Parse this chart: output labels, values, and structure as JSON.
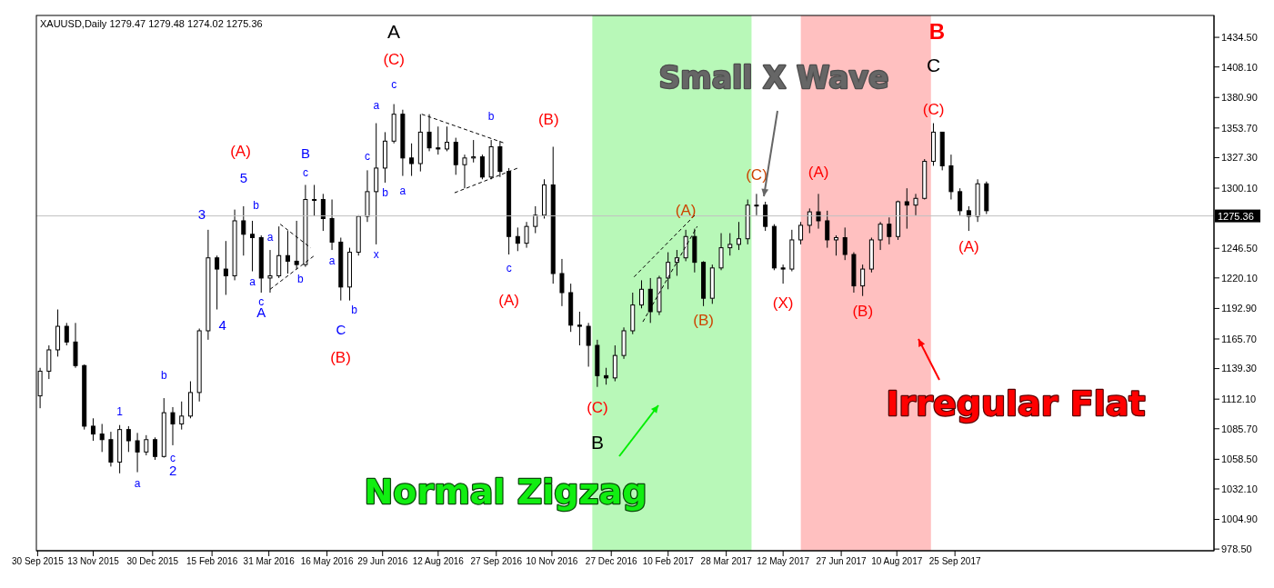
{
  "chart_data": {
    "type": "candlestick",
    "title": "XAUUSD,Daily 1279.47 1279.48 1274.02 1275.36",
    "color": "#000000",
    "x": [
      "2015-10-02",
      "2015-10-09",
      "2015-10-16",
      "2015-10-23",
      "2015-10-30",
      "2015-11-06",
      "2015-11-13",
      "2015-11-20",
      "2015-11-27",
      "2015-12-04",
      "2015-12-11",
      "2015-12-18",
      "2015-12-25",
      "2016-01-01",
      "2016-01-08",
      "2016-01-15",
      "2016-01-22",
      "2016-01-29",
      "2016-02-05",
      "2016-02-12",
      "2016-02-19",
      "2016-02-26",
      "2016-03-04",
      "2016-03-11",
      "2016-03-18",
      "2016-03-25",
      "2016-04-01",
      "2016-04-08",
      "2016-04-15",
      "2016-04-22",
      "2016-04-29",
      "2016-05-06",
      "2016-05-13",
      "2016-05-20",
      "2016-05-27",
      "2016-06-03",
      "2016-06-10",
      "2016-06-17",
      "2016-06-24",
      "2016-07-01",
      "2016-07-08",
      "2016-07-15",
      "2016-07-22",
      "2016-07-29",
      "2016-08-05",
      "2016-08-12",
      "2016-08-19",
      "2016-08-26",
      "2016-09-02",
      "2016-09-09",
      "2016-09-16",
      "2016-09-23",
      "2016-09-30",
      "2016-10-07",
      "2016-10-14",
      "2016-10-21",
      "2016-10-28",
      "2016-11-04",
      "2016-11-11",
      "2016-11-18",
      "2016-11-25",
      "2016-12-02",
      "2016-12-09",
      "2016-12-16",
      "2016-12-23",
      "2016-12-30",
      "2017-01-06",
      "2017-01-13",
      "2017-01-20",
      "2017-01-27",
      "2017-02-03",
      "2017-02-10",
      "2017-02-17",
      "2017-02-24",
      "2017-03-03",
      "2017-03-10",
      "2017-03-17",
      "2017-03-24",
      "2017-03-31",
      "2017-04-07",
      "2017-04-14",
      "2017-04-21",
      "2017-04-28",
      "2017-05-05",
      "2017-05-12",
      "2017-05-19",
      "2017-05-26",
      "2017-06-02",
      "2017-06-09",
      "2017-06-16",
      "2017-06-23",
      "2017-06-30",
      "2017-07-07",
      "2017-07-14",
      "2017-07-21",
      "2017-07-28",
      "2017-08-04",
      "2017-08-11",
      "2017-08-18",
      "2017-08-25",
      "2017-09-01",
      "2017-09-08",
      "2017-09-15",
      "2017-09-22",
      "2017-09-29",
      "2017-10-06",
      "2017-10-13",
      "2017-10-20"
    ],
    "ohlc": [
      [
        1115,
        1140,
        1104,
        1137
      ],
      [
        1137,
        1160,
        1130,
        1156
      ],
      [
        1156,
        1192,
        1150,
        1177
      ],
      [
        1177,
        1180,
        1160,
        1163
      ],
      [
        1163,
        1180,
        1140,
        1142
      ],
      [
        1142,
        1143,
        1085,
        1088
      ],
      [
        1088,
        1095,
        1075,
        1081
      ],
      [
        1081,
        1090,
        1065,
        1076
      ],
      [
        1076,
        1083,
        1052,
        1056
      ],
      [
        1056,
        1089,
        1046,
        1085
      ],
      [
        1085,
        1088,
        1065,
        1075
      ],
      [
        1075,
        1082,
        1047,
        1065
      ],
      [
        1065,
        1080,
        1062,
        1076
      ],
      [
        1076,
        1078,
        1058,
        1061
      ],
      [
        1061,
        1113,
        1060,
        1100
      ],
      [
        1100,
        1105,
        1071,
        1090
      ],
      [
        1090,
        1110,
        1085,
        1097
      ],
      [
        1097,
        1128,
        1095,
        1118
      ],
      [
        1118,
        1175,
        1110,
        1173
      ],
      [
        1173,
        1263,
        1165,
        1238
      ],
      [
        1238,
        1240,
        1192,
        1228
      ],
      [
        1228,
        1253,
        1205,
        1222
      ],
      [
        1222,
        1281,
        1218,
        1271
      ],
      [
        1271,
        1284,
        1240,
        1259
      ],
      [
        1259,
        1271,
        1226,
        1256
      ],
      [
        1256,
        1258,
        1207,
        1220
      ],
      [
        1220,
        1245,
        1207,
        1222
      ],
      [
        1222,
        1266,
        1220,
        1240
      ],
      [
        1240,
        1262,
        1224,
        1235
      ],
      [
        1235,
        1271,
        1228,
        1232
      ],
      [
        1232,
        1303,
        1230,
        1290
      ],
      [
        1290,
        1303,
        1275,
        1290
      ],
      [
        1290,
        1295,
        1262,
        1273
      ],
      [
        1273,
        1290,
        1245,
        1252
      ],
      [
        1252,
        1256,
        1200,
        1212
      ],
      [
        1212,
        1247,
        1200,
        1243
      ],
      [
        1243,
        1276,
        1240,
        1275
      ],
      [
        1275,
        1316,
        1270,
        1297
      ],
      [
        1297,
        1358,
        1250,
        1318
      ],
      [
        1318,
        1350,
        1305,
        1342
      ],
      [
        1342,
        1375,
        1340,
        1366
      ],
      [
        1366,
        1370,
        1311,
        1327
      ],
      [
        1327,
        1340,
        1311,
        1322
      ],
      [
        1322,
        1366,
        1315,
        1350
      ],
      [
        1350,
        1366,
        1333,
        1336
      ],
      [
        1336,
        1355,
        1330,
        1335
      ],
      [
        1335,
        1355,
        1333,
        1341
      ],
      [
        1341,
        1345,
        1312,
        1321
      ],
      [
        1321,
        1330,
        1300,
        1327
      ],
      [
        1327,
        1343,
        1323,
        1328
      ],
      [
        1328,
        1330,
        1308,
        1310
      ],
      [
        1310,
        1343,
        1308,
        1337
      ],
      [
        1337,
        1342,
        1310,
        1315
      ],
      [
        1315,
        1318,
        1241,
        1257
      ],
      [
        1257,
        1265,
        1244,
        1251
      ],
      [
        1251,
        1270,
        1247,
        1266
      ],
      [
        1266,
        1284,
        1260,
        1276
      ],
      [
        1276,
        1308,
        1273,
        1303
      ],
      [
        1303,
        1337,
        1215,
        1224
      ],
      [
        1224,
        1237,
        1195,
        1207
      ],
      [
        1207,
        1215,
        1172,
        1178
      ],
      [
        1178,
        1190,
        1160,
        1177
      ],
      [
        1177,
        1180,
        1141,
        1160
      ],
      [
        1160,
        1165,
        1123,
        1133
      ],
      [
        1133,
        1140,
        1125,
        1131
      ],
      [
        1131,
        1160,
        1128,
        1151
      ],
      [
        1151,
        1176,
        1148,
        1173
      ],
      [
        1173,
        1207,
        1170,
        1196
      ],
      [
        1196,
        1218,
        1193,
        1210
      ],
      [
        1210,
        1220,
        1180,
        1190
      ],
      [
        1190,
        1222,
        1187,
        1220
      ],
      [
        1220,
        1243,
        1210,
        1234
      ],
      [
        1234,
        1245,
        1222,
        1238
      ],
      [
        1238,
        1263,
        1235,
        1257
      ],
      [
        1257,
        1264,
        1225,
        1234
      ],
      [
        1234,
        1235,
        1195,
        1202
      ],
      [
        1202,
        1232,
        1197,
        1229
      ],
      [
        1229,
        1260,
        1227,
        1247
      ],
      [
        1247,
        1260,
        1240,
        1250
      ],
      [
        1250,
        1270,
        1245,
        1255
      ],
      [
        1255,
        1290,
        1250,
        1285
      ],
      [
        1285,
        1295,
        1276,
        1285
      ],
      [
        1285,
        1288,
        1262,
        1266
      ],
      [
        1266,
        1268,
        1227,
        1229
      ],
      [
        1229,
        1232,
        1215,
        1228
      ],
      [
        1228,
        1263,
        1226,
        1254
      ],
      [
        1254,
        1270,
        1250,
        1267
      ],
      [
        1267,
        1282,
        1260,
        1279
      ],
      [
        1279,
        1295,
        1264,
        1271
      ],
      [
        1271,
        1280,
        1247,
        1254
      ],
      [
        1254,
        1258,
        1240,
        1256
      ],
      [
        1256,
        1265,
        1236,
        1241
      ],
      [
        1241,
        1243,
        1207,
        1213
      ],
      [
        1213,
        1232,
        1204,
        1228
      ],
      [
        1228,
        1256,
        1225,
        1254
      ],
      [
        1254,
        1270,
        1245,
        1268
      ],
      [
        1268,
        1274,
        1250,
        1257
      ],
      [
        1257,
        1289,
        1254,
        1288
      ],
      [
        1288,
        1300,
        1264,
        1285
      ],
      [
        1285,
        1295,
        1276,
        1291
      ],
      [
        1291,
        1326,
        1290,
        1324
      ],
      [
        1324,
        1358,
        1320,
        1350
      ],
      [
        1350,
        1350,
        1316,
        1320
      ],
      [
        1320,
        1330,
        1290,
        1297
      ],
      [
        1297,
        1300,
        1276,
        1280
      ],
      [
        1280,
        1284,
        1262,
        1275
      ],
      [
        1275,
        1308,
        1270,
        1304
      ],
      [
        1304,
        1306,
        1277,
        1280
      ]
    ],
    "series": [
      {
        "type": "line",
        "color": "#000000",
        "line_style": "dashed",
        "x": [
          "2016-04-09",
          "2016-05-03"
        ],
        "values": [
          1268,
          1247
        ]
      },
      {
        "type": "line",
        "color": "#000000",
        "line_style": "dashed",
        "x": [
          "2016-04-01",
          "2016-05-06"
        ],
        "values": [
          1210,
          1240
        ]
      },
      {
        "type": "line",
        "color": "#000000",
        "line_style": "dashed",
        "x": [
          "2016-07-30",
          "2016-10-04"
        ],
        "values": [
          1366,
          1340
        ]
      },
      {
        "type": "line",
        "color": "#000000",
        "line_style": "dashed",
        "x": [
          "2016-08-25",
          "2016-10-14"
        ],
        "values": [
          1296,
          1318
        ]
      },
      {
        "type": "line",
        "color": "#000000",
        "line_style": "dashed",
        "x": [
          "2017-01-14",
          "2017-03-04"
        ],
        "values": [
          1221,
          1277
        ]
      },
      {
        "type": "line",
        "color": "#000000",
        "line_style": "dashed",
        "x": [
          "2017-01-21",
          "2017-03-05"
        ],
        "values": [
          1181,
          1266
        ]
      }
    ],
    "xlim": [
      "2015-09-29",
      "2018-04-18"
    ],
    "xticks": [
      {
        "value": "2015-09-30",
        "label": "30 Sep 2015"
      },
      {
        "value": "2015-11-13",
        "label": "13 Nov 2015"
      },
      {
        "value": "2015-12-30",
        "label": "30 Dec 2015"
      },
      {
        "value": "2016-02-15",
        "label": "15 Feb 2016"
      },
      {
        "value": "2016-03-31",
        "label": "31 Mar 2016"
      },
      {
        "value": "2016-05-16",
        "label": "16 May 2016"
      },
      {
        "value": "2016-06-29",
        "label": "29 Jun 2016"
      },
      {
        "value": "2016-08-12",
        "label": "12 Aug 2016"
      },
      {
        "value": "2016-09-27",
        "label": "27 Sep 2016"
      },
      {
        "value": "2016-11-10",
        "label": "10 Nov 2016"
      },
      {
        "value": "2016-12-27",
        "label": "27 Dec 2016"
      },
      {
        "value": "2017-02-10",
        "label": "10 Feb 2017"
      },
      {
        "value": "2017-03-28",
        "label": "28 Mar 2017"
      },
      {
        "value": "2017-05-12",
        "label": "12 May 2017"
      },
      {
        "value": "2017-06-27",
        "label": "27 Jun 2017"
      },
      {
        "value": "2017-08-10",
        "label": "10 Aug 2017"
      },
      {
        "value": "2017-09-25",
        "label": "25 Sep 2017"
      }
    ],
    "ylim": [
      977,
      1454
    ],
    "yticks": [
      {
        "value": 978.5,
        "label": "978.50"
      },
      {
        "value": 1004.9,
        "label": "1004.90"
      },
      {
        "value": 1032.1,
        "label": "1032.10"
      },
      {
        "value": 1058.5,
        "label": "1058.50"
      },
      {
        "value": 1085.7,
        "label": "1085.70"
      },
      {
        "value": 1112.1,
        "label": "1112.10"
      },
      {
        "value": 1139.3,
        "label": "1139.30"
      },
      {
        "value": 1165.7,
        "label": "1165.70"
      },
      {
        "value": 1192.9,
        "label": "1192.90"
      },
      {
        "value": 1220.1,
        "label": "1220.10"
      },
      {
        "value": 1246.5,
        "label": "1246.50"
      },
      {
        "value": 1300.1,
        "label": "1300.10"
      },
      {
        "value": 1327.3,
        "label": "1327.30"
      },
      {
        "value": 1353.7,
        "label": "1353.70"
      },
      {
        "value": 1380.9,
        "label": "1380.90"
      },
      {
        "value": 1408.1,
        "label": "1408.10"
      },
      {
        "value": 1434.5,
        "label": "1434.50"
      }
    ],
    "ref_lines": [
      {
        "axis": "y",
        "value": 1275.36,
        "label": "1275.36",
        "color": "#c0c0c0"
      }
    ],
    "bands": [
      {
        "axis": "x",
        "from": "2016-12-12",
        "to": "2017-04-17",
        "color": "#b8f8b8"
      },
      {
        "axis": "x",
        "from": "2017-05-26",
        "to": "2017-09-06",
        "color": "#ffc0c0"
      }
    ],
    "annotations": [
      {
        "text": "1",
        "x": "2015-12-04",
        "y": 1089
      },
      {
        "text": "a",
        "x": "2015-12-18",
        "y": 1047
      },
      {
        "text": "b",
        "x": "2016-01-08",
        "y": 1113
      },
      {
        "text": "c",
        "x": "2016-01-15",
        "y": 1071
      },
      {
        "text": "2",
        "x": "2016-01-15",
        "y": 1071
      },
      {
        "text": "3",
        "x": "2016-02-12",
        "y": 1263
      },
      {
        "text": "4",
        "x": "2016-02-19",
        "y": 1192
      },
      {
        "text": "5",
        "x": "2016-03-11",
        "y": 1284
      },
      {
        "text": "b",
        "x": "2016-03-18",
        "y": 1271
      },
      {
        "text": "a",
        "x": "2016-03-18",
        "y": 1226
      },
      {
        "text": "a",
        "x": "2016-04-01",
        "y": 1245
      },
      {
        "text": "c",
        "x": "2016-03-25",
        "y": 1207
      },
      {
        "text": "A",
        "x": "2016-03-25",
        "y": 1207
      },
      {
        "text": "b",
        "x": "2016-04-22",
        "y": 1228
      },
      {
        "text": "B",
        "x": "2016-04-29",
        "y": 1303
      },
      {
        "text": "c",
        "x": "2016-04-29",
        "y": 1303
      },
      "(A)",
      {
        "text": "a",
        "x": "2016-05-20",
        "y": 1245
      },
      {
        "text": "b",
        "x": "2016-06-03",
        "y": 1200
      },
      {
        "text": "C",
        "x": "2016-05-27",
        "y": 1200
      },
      "(B)",
      {
        "text": "c",
        "x": "2016-06-17",
        "y": 1316
      },
      {
        "text": "a",
        "x": "2016-06-24",
        "y": 1358
      },
      {
        "text": "b",
        "x": "2016-07-01",
        "y": 1305
      },
      {
        "text": "x",
        "x": "2016-06-24",
        "y": 1250
      },
      {
        "text": "c",
        "x": "2016-07-08",
        "y": 1375
      },
      {
        "text": "(C)",
        "x": "2016-07-08",
        "y": 1375
      },
      "A",
      {
        "text": "a",
        "x": "2016-07-15",
        "y": 1311
      },
      {
        "text": "b",
        "x": "2016-09-23",
        "y": 1343
      },
      {
        "text": "c",
        "x": "2016-10-07",
        "y": 1241
      },
      {
        "text": "(A)",
        "x": "2016-10-07",
        "y": 1241
      },
      {
        "text": "(B)",
        "x": "2016-11-11",
        "y": 1337
      },
      {
        "text": "(C)",
        "x": "2016-12-16",
        "y": 1123
      },
      {
        "text": "B",
        "x": "2016-12-16",
        "y": 1123
      },
      {
        "text": "(A)",
        "x": "2017-02-24",
        "y": 1263
      },
      {
        "text": "(B)",
        "x": "2017-03-10",
        "y": 1195
      },
      {
        "text": "(C)",
        "x": "2017-04-21",
        "y": 1295
      },
      {
        "text": "(X)",
        "x": "2017-05-12",
        "y": 1215
      },
      {
        "text": "(A)",
        "x": "2017-06-09",
        "y": 1295
      },
      {
        "text": "(B)",
        "x": "2017-07-14",
        "y": 1204
      },
      {
        "text": "(C)",
        "x": "2017-09-08",
        "y": 1358
      },
      {
        "text": "C",
        "x": "2017-09-08",
        "y": 1358
      },
      "B",
      {
        "text": "(A)",
        "x": "2017-10-06",
        "y": 1262
      },
      "Small X Wave",
      "Normal Zigzag",
      "Irregular Flat"
    ]
  }
}
